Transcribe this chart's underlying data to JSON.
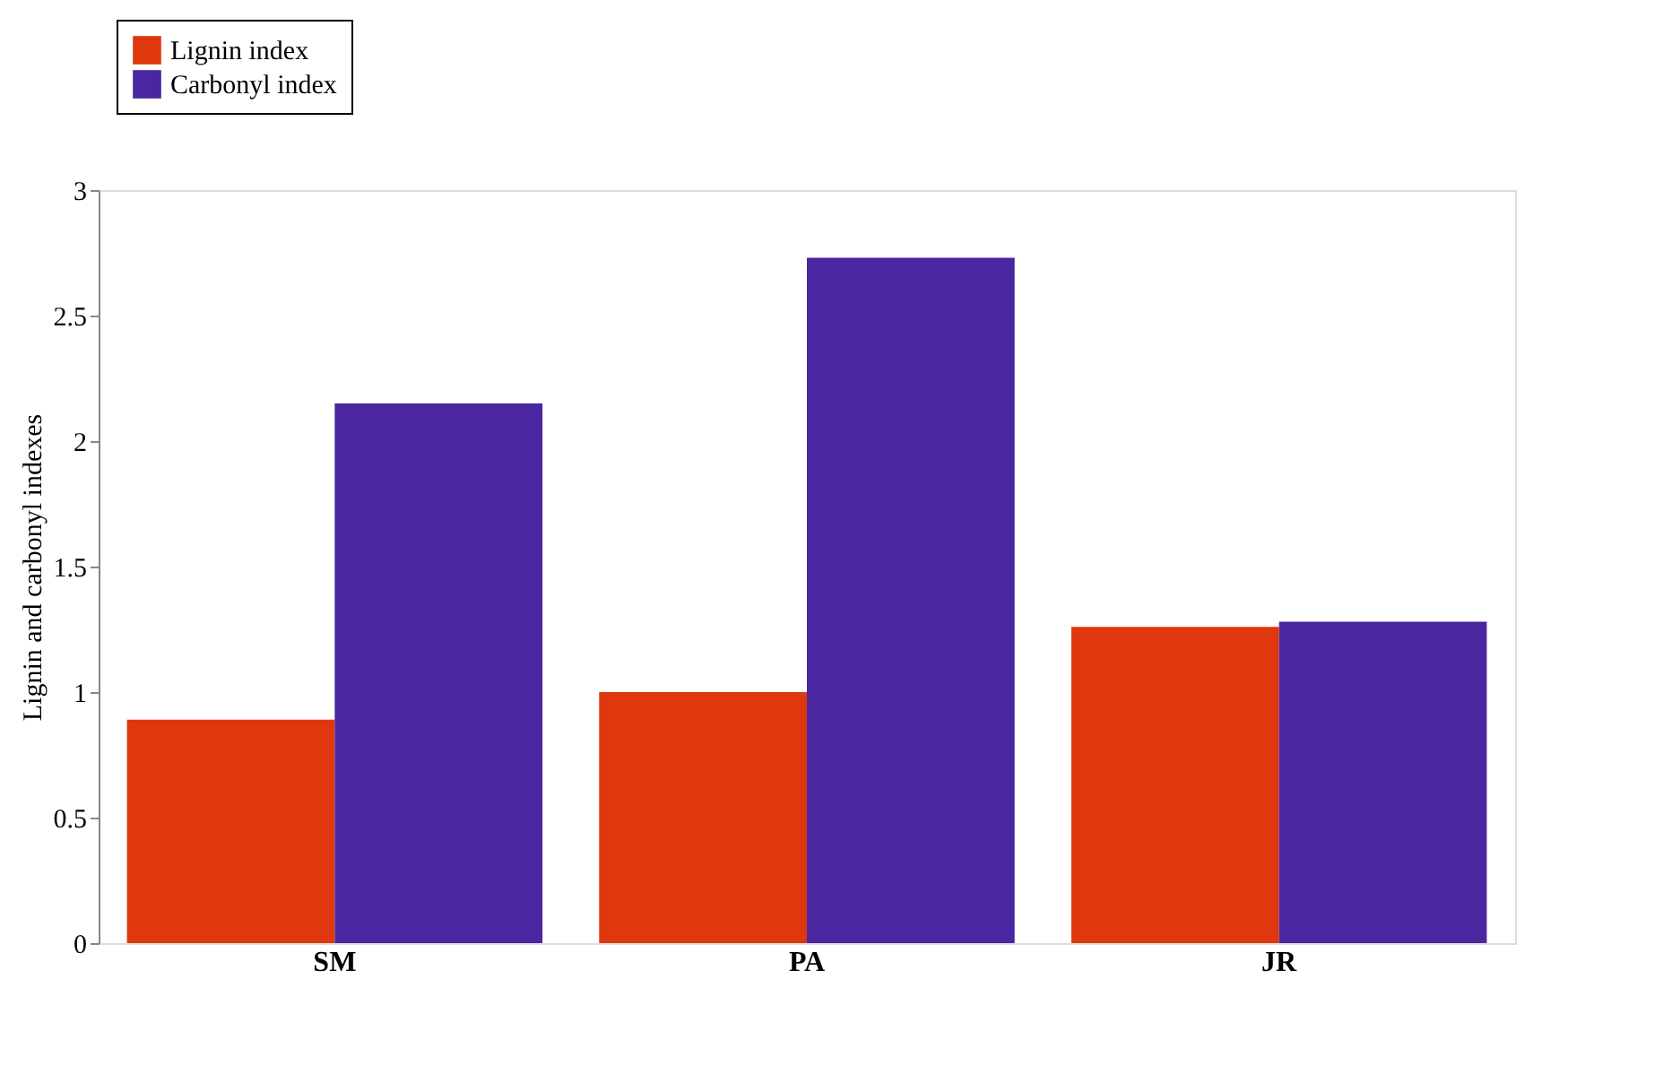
{
  "chart_data": {
    "type": "bar",
    "ylabel": "Lignin and carbonyl indexes",
    "categories": [
      "SM",
      "PA",
      "JR"
    ],
    "series": [
      {
        "name": "Lignin index",
        "color": "#e0380e",
        "values": [
          0.89,
          1.0,
          1.26
        ]
      },
      {
        "name": "Carbonyl index",
        "color": "#4a27a0",
        "values": [
          2.15,
          2.73,
          1.28
        ]
      }
    ],
    "ylim": [
      0,
      3
    ],
    "yticks": [
      0,
      0.5,
      1,
      1.5,
      2,
      2.5,
      3
    ],
    "grid": false,
    "legend": "top left"
  }
}
